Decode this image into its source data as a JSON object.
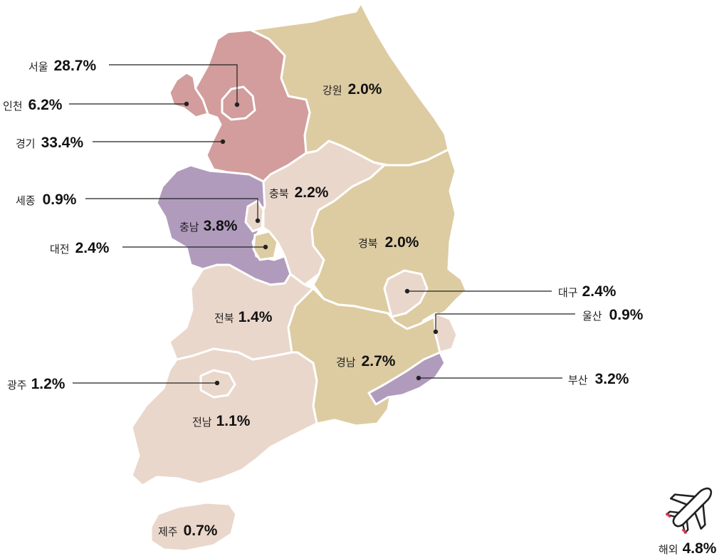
{
  "colors": {
    "high": "#d29d9c",
    "mid_tan": "#ddcca2",
    "purple": "#b09bbd",
    "light_pink": "#ead7cb",
    "ink": "#222222"
  },
  "regions": {
    "seoul": {
      "name": "서울",
      "value": "28.7%"
    },
    "incheon": {
      "name": "인천",
      "value": "6.2%"
    },
    "gyeonggi": {
      "name": "경기",
      "value": "33.4%"
    },
    "sejong": {
      "name": "세종",
      "value": "0.9%"
    },
    "daejeon": {
      "name": "대전",
      "value": "2.4%"
    },
    "gangwon": {
      "name": "강원",
      "value": "2.0%"
    },
    "chungbuk": {
      "name": "충북",
      "value": "2.2%"
    },
    "chungnam": {
      "name": "충남",
      "value": "3.8%"
    },
    "gyeongbuk": {
      "name": "경북",
      "value": "2.0%"
    },
    "daegu": {
      "name": "대구",
      "value": "2.4%"
    },
    "ulsan": {
      "name": "울산",
      "value": "0.9%"
    },
    "jeonbuk": {
      "name": "전북",
      "value": "1.4%"
    },
    "gyeongnam": {
      "name": "경남",
      "value": "2.7%"
    },
    "busan": {
      "name": "부산",
      "value": "3.2%"
    },
    "gwangju": {
      "name": "광주",
      "value": "1.2%"
    },
    "jeonnam": {
      "name": "전남",
      "value": "1.1%"
    },
    "jeju": {
      "name": "제주",
      "value": "0.7%"
    }
  },
  "overseas": {
    "name": "해외",
    "value": "4.8%",
    "icon": "airplane-icon"
  }
}
